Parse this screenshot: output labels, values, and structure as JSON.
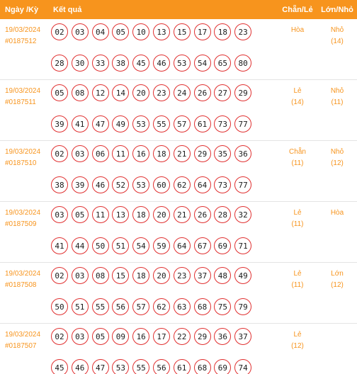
{
  "header": {
    "date_label": "Ngày /Kỳ",
    "result_label": "Kết quả",
    "parity_label": "Chẵn/Lẻ",
    "size_label": "Lớn/Nhỏ"
  },
  "colors": {
    "accent": "#f7941d",
    "ball_border": "#e03030"
  },
  "draws": [
    {
      "date": "19/03/2024",
      "id": "#0187512",
      "line1": [
        "02",
        "03",
        "04",
        "05",
        "10",
        "13",
        "15",
        "17",
        "18",
        "23"
      ],
      "line2": [
        "28",
        "30",
        "33",
        "38",
        "45",
        "46",
        "53",
        "54",
        "65",
        "80"
      ],
      "parity": "Hòa",
      "parity_count": "",
      "size": "Nhỏ",
      "size_count": "(14)"
    },
    {
      "date": "19/03/2024",
      "id": "#0187511",
      "line1": [
        "05",
        "08",
        "12",
        "14",
        "20",
        "23",
        "24",
        "26",
        "27",
        "29"
      ],
      "line2": [
        "39",
        "41",
        "47",
        "49",
        "53",
        "55",
        "57",
        "61",
        "73",
        "77"
      ],
      "parity": "Lẻ",
      "parity_count": "(14)",
      "size": "Nhỏ",
      "size_count": "(11)"
    },
    {
      "date": "19/03/2024",
      "id": "#0187510",
      "line1": [
        "02",
        "03",
        "06",
        "11",
        "16",
        "18",
        "21",
        "29",
        "35",
        "36"
      ],
      "line2": [
        "38",
        "39",
        "46",
        "52",
        "53",
        "60",
        "62",
        "64",
        "73",
        "77"
      ],
      "parity": "Chẵn",
      "parity_count": "(11)",
      "size": "Nhỏ",
      "size_count": "(12)"
    },
    {
      "date": "19/03/2024",
      "id": "#0187509",
      "line1": [
        "03",
        "05",
        "11",
        "13",
        "18",
        "20",
        "21",
        "26",
        "28",
        "32"
      ],
      "line2": [
        "41",
        "44",
        "50",
        "51",
        "54",
        "59",
        "64",
        "67",
        "69",
        "71"
      ],
      "parity": "Lẻ",
      "parity_count": "(11)",
      "size": "Hòa",
      "size_count": ""
    },
    {
      "date": "19/03/2024",
      "id": "#0187508",
      "line1": [
        "02",
        "03",
        "08",
        "15",
        "18",
        "20",
        "23",
        "37",
        "48",
        "49"
      ],
      "line2": [
        "50",
        "51",
        "55",
        "56",
        "57",
        "62",
        "63",
        "68",
        "75",
        "79"
      ],
      "parity": "Lẻ",
      "parity_count": "(11)",
      "size": "Lớn",
      "size_count": "(12)"
    },
    {
      "date": "19/03/2024",
      "id": "#0187507",
      "line1": [
        "02",
        "03",
        "05",
        "09",
        "16",
        "17",
        "22",
        "29",
        "36",
        "37"
      ],
      "line2": [
        "45",
        "46",
        "47",
        "53",
        "55",
        "56",
        "61",
        "68",
        "69",
        "74"
      ],
      "parity": "Lẻ",
      "parity_count": "(12)",
      "size": "",
      "size_count": ""
    }
  ]
}
